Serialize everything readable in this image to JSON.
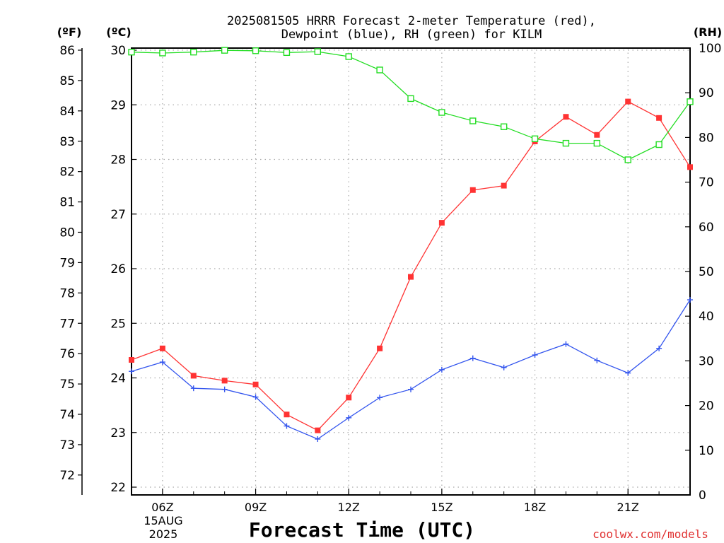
{
  "chart_data": {
    "type": "line",
    "title_line1": "2025081505 HRRR Forecast 2-meter Temperature (red),",
    "title_line2": "Dewpoint (blue), RH (green) for KILM",
    "xlabel": "Forecast Time (UTC)",
    "credit": "coolwx.com/models",
    "unit_f": "(ºF)",
    "unit_c": "(ºC)",
    "unit_rh": "(RH)",
    "date_line1": "15AUG",
    "date_line2": "2025",
    "x_hours": [
      5,
      6,
      7,
      8,
      9,
      10,
      11,
      12,
      13,
      14,
      15,
      16,
      17,
      18,
      19,
      20,
      21,
      22,
      23
    ],
    "xlim": [
      5,
      23
    ],
    "x_ticks": [
      {
        "hour": 6,
        "label": "06Z"
      },
      {
        "hour": 9,
        "label": "09Z"
      },
      {
        "hour": 12,
        "label": "12Z"
      },
      {
        "hour": 15,
        "label": "15Z"
      },
      {
        "hour": 18,
        "label": "18Z"
      },
      {
        "hour": 21,
        "label": "21Z"
      }
    ],
    "c_ticks": [
      "22",
      "23",
      "24",
      "25",
      "26",
      "27",
      "28",
      "29",
      "30"
    ],
    "f_ticks": [
      "72",
      "73",
      "74",
      "75",
      "76",
      "77",
      "78",
      "79",
      "80",
      "81",
      "82",
      "83",
      "84",
      "85",
      "86"
    ],
    "rh_ticks": [
      "0",
      "10",
      "20",
      "30",
      "40",
      "50",
      "60",
      "70",
      "80",
      "90",
      "100"
    ],
    "ylim_c": [
      21.8,
      30.05
    ],
    "ylim_rh": [
      0,
      100
    ],
    "grid": true,
    "series": [
      {
        "name": "Temperature",
        "axis": "c",
        "color": "#ff3333",
        "marker": "filled-square",
        "values": [
          24.33,
          24.54,
          24.04,
          23.95,
          23.88,
          23.33,
          23.04,
          23.64,
          24.54,
          25.85,
          26.84,
          27.44,
          27.52,
          28.33,
          28.78,
          28.45,
          29.06,
          28.76,
          27.86
        ]
      },
      {
        "name": "Dewpoint",
        "axis": "c",
        "color": "#3355ee",
        "marker": "plus",
        "values": [
          24.12,
          24.29,
          23.81,
          23.79,
          23.65,
          23.12,
          22.88,
          23.27,
          23.64,
          23.79,
          24.15,
          24.36,
          24.19,
          24.42,
          24.62,
          24.32,
          24.09,
          24.54,
          25.43
        ]
      },
      {
        "name": "RH",
        "axis": "rh",
        "color": "#22dd22",
        "marker": "open-square",
        "values": [
          99.1,
          98.9,
          99.1,
          99.5,
          99.4,
          99.0,
          99.2,
          98.1,
          95.1,
          88.7,
          85.6,
          83.7,
          82.4,
          79.7,
          78.7,
          78.7,
          75.0,
          78.4,
          88.0
        ]
      }
    ]
  }
}
